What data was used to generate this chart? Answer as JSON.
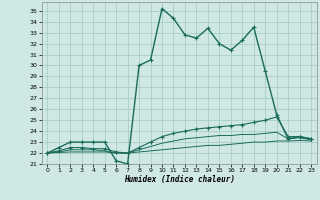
{
  "xlabel": "Humidex (Indice chaleur)",
  "bg_color": "#cfe8e4",
  "grid_color": "#a0c8c4",
  "line_color": "#1a6b5a",
  "xlim": [
    -0.5,
    23.5
  ],
  "ylim": [
    21,
    35.8
  ],
  "xticks": [
    0,
    1,
    2,
    3,
    4,
    5,
    6,
    7,
    8,
    9,
    10,
    11,
    12,
    13,
    14,
    15,
    16,
    17,
    18,
    19,
    20,
    21,
    22,
    23
  ],
  "yticks": [
    21,
    22,
    23,
    24,
    25,
    26,
    27,
    28,
    29,
    30,
    31,
    32,
    33,
    34,
    35
  ],
  "series": [
    {
      "x": [
        0,
        1,
        2,
        3,
        4,
        5,
        6,
        7,
        8,
        9,
        10,
        11,
        12,
        13,
        14,
        15,
        16,
        17,
        18,
        19,
        20,
        21,
        22,
        23
      ],
      "y": [
        22.0,
        22.5,
        23.0,
        23.0,
        23.0,
        23.0,
        21.3,
        21.0,
        30.0,
        30.5,
        35.2,
        34.3,
        32.8,
        32.5,
        33.4,
        32.0,
        31.4,
        32.3,
        33.5,
        29.5,
        25.5,
        23.3,
        23.5,
        23.3
      ],
      "marker": true,
      "lw": 1.0
    },
    {
      "x": [
        0,
        1,
        2,
        3,
        4,
        5,
        6,
        7,
        8,
        9,
        10,
        11,
        12,
        13,
        14,
        15,
        16,
        17,
        18,
        19,
        20,
        21,
        22,
        23
      ],
      "y": [
        22.0,
        22.2,
        22.5,
        22.5,
        22.4,
        22.4,
        22.1,
        22.0,
        22.5,
        23.0,
        23.5,
        23.8,
        24.0,
        24.2,
        24.3,
        24.4,
        24.5,
        24.6,
        24.8,
        25.0,
        25.3,
        23.5,
        23.5,
        23.3
      ],
      "marker": true,
      "lw": 0.8
    },
    {
      "x": [
        0,
        1,
        2,
        3,
        4,
        5,
        6,
        7,
        8,
        9,
        10,
        11,
        12,
        13,
        14,
        15,
        16,
        17,
        18,
        19,
        20,
        21,
        22,
        23
      ],
      "y": [
        22.0,
        22.1,
        22.3,
        22.3,
        22.3,
        22.2,
        22.0,
        22.0,
        22.3,
        22.6,
        22.9,
        23.1,
        23.3,
        23.4,
        23.5,
        23.6,
        23.6,
        23.7,
        23.7,
        23.8,
        23.9,
        23.3,
        23.4,
        23.2
      ],
      "marker": false,
      "lw": 0.7
    },
    {
      "x": [
        0,
        1,
        2,
        3,
        4,
        5,
        6,
        7,
        8,
        9,
        10,
        11,
        12,
        13,
        14,
        15,
        16,
        17,
        18,
        19,
        20,
        21,
        22,
        23
      ],
      "y": [
        22.0,
        22.05,
        22.1,
        22.1,
        22.1,
        22.1,
        22.0,
        22.0,
        22.1,
        22.2,
        22.3,
        22.4,
        22.5,
        22.6,
        22.7,
        22.7,
        22.8,
        22.9,
        23.0,
        23.0,
        23.1,
        23.1,
        23.15,
        23.1
      ],
      "marker": false,
      "lw": 0.7
    }
  ]
}
